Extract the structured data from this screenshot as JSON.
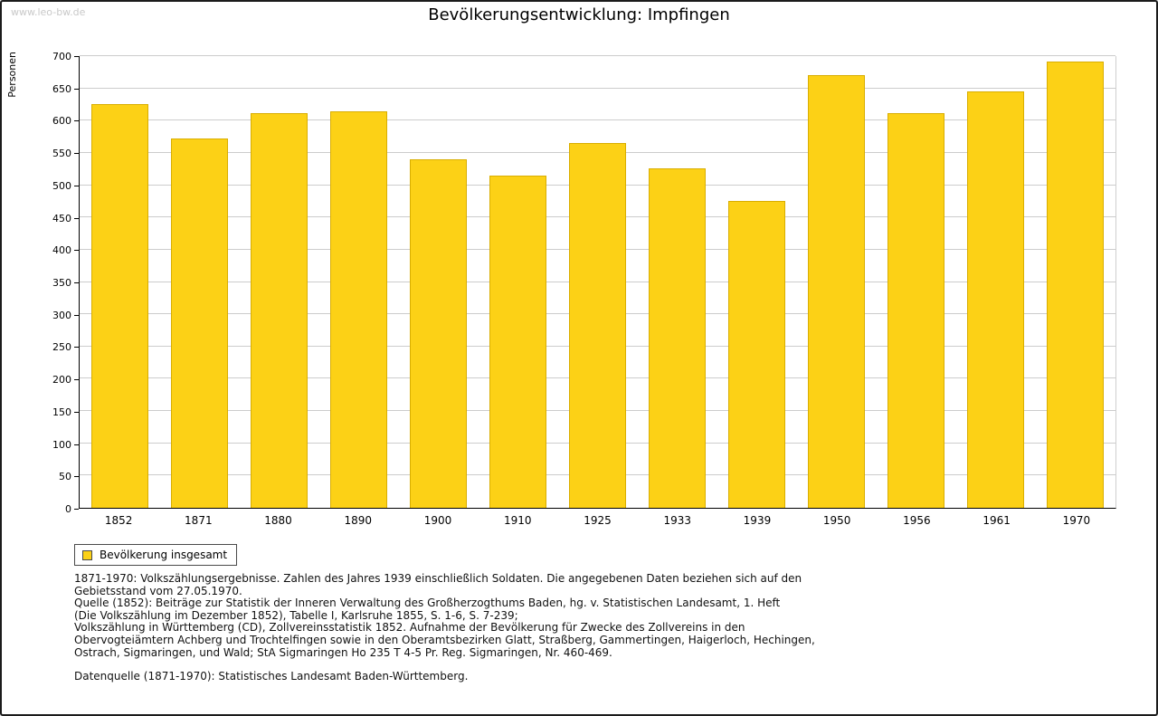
{
  "page": {
    "watermark": "www.leo-bw.de",
    "title": "Bevölkerungsentwicklung: Impfingen"
  },
  "chart_data": {
    "type": "bar",
    "title": "Bevölkerungsentwicklung: Impfingen",
    "xlabel": "",
    "ylabel": "Personen",
    "ylim": [
      0,
      700
    ],
    "ytick_step": 50,
    "grid": true,
    "legend_position": "bottom-left",
    "bar_color": "#FCD116",
    "bar_border_color": "#D9AE00",
    "categories": [
      "1852",
      "1871",
      "1880",
      "1890",
      "1900",
      "1910",
      "1925",
      "1933",
      "1939",
      "1950",
      "1956",
      "1961",
      "1970"
    ],
    "series": [
      {
        "name": "Bevölkerung insgesamt",
        "values": [
          625,
          572,
          612,
          614,
          540,
          515,
          565,
          526,
          475,
          670,
          611,
          646,
          692
        ]
      }
    ]
  },
  "legend": {
    "label": "Bevölkerung insgesamt",
    "swatch_color": "#FCD116"
  },
  "notes": {
    "block1": "1871-1970: Volkszählungsergebnisse. Zahlen des Jahres 1939 einschließlich Soldaten. Die angegebenen Daten beziehen sich auf den\nGebietsstand vom 27.05.1970.\nQuelle (1852): Beiträge zur Statistik der Inneren Verwaltung des Großherzogthums Baden, hg. v. Statistischen Landesamt, 1. Heft\n(Die Volkszählung im Dezember 1852), Tabelle I, Karlsruhe 1855, S. 1-6, S. 7-239;\nVolkszählung in Württemberg (CD), Zollvereinsstatistik 1852. Aufnahme der Bevölkerung für Zwecke des Zollvereins in den\nObervogteiämtern Achberg und Trochtelfingen sowie in den Oberamtsbezirken Glatt, Straßberg, Gammertingen, Haigerloch, Hechingen,\nOstrach, Sigmaringen, und Wald; StA Sigmaringen Ho 235 T 4-5 Pr. Reg. Sigmaringen, Nr. 460-469.",
    "block2": "Datenquelle (1871-1970): Statistisches Landesamt Baden-Württemberg."
  }
}
